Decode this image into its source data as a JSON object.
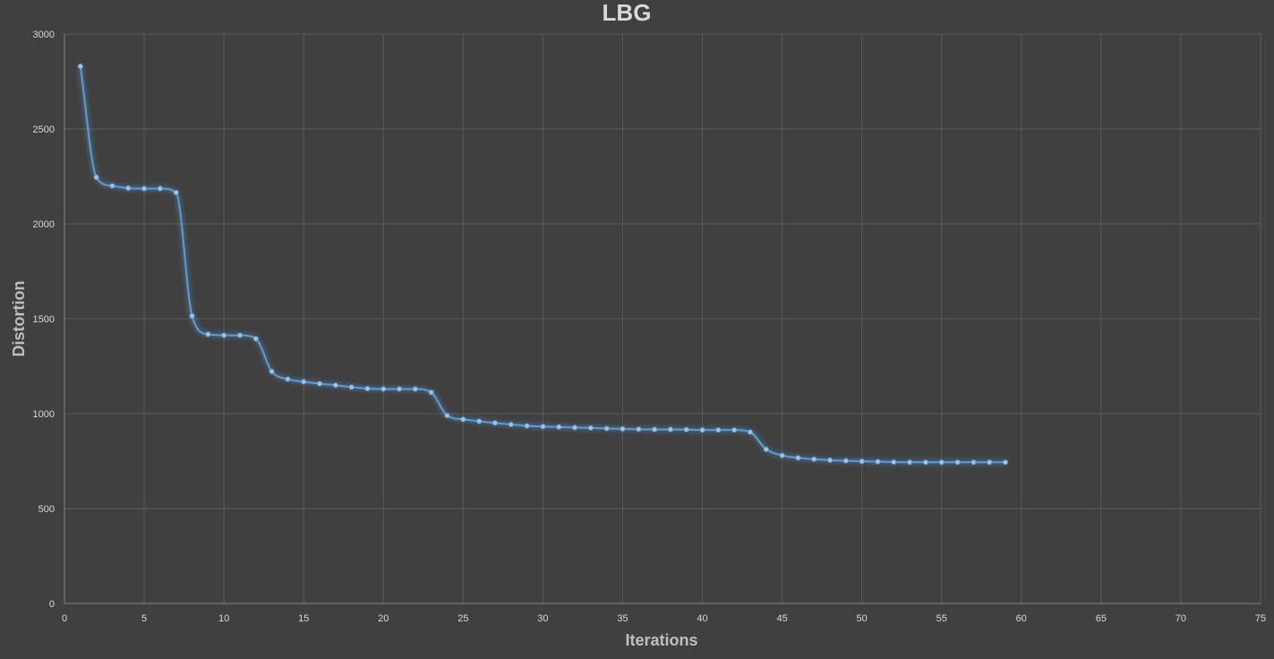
{
  "chart_data": {
    "type": "scatter",
    "title": "LBG",
    "xlabel": "Iterations",
    "ylabel": "Distortion",
    "xlim": [
      0,
      75
    ],
    "ylim": [
      0,
      3000
    ],
    "xticks": [
      0,
      5,
      10,
      15,
      20,
      25,
      30,
      35,
      40,
      45,
      50,
      55,
      60,
      65,
      70,
      75
    ],
    "yticks": [
      0,
      500,
      1000,
      1500,
      2000,
      2500,
      3000
    ],
    "grid": true,
    "line_style": "smooth line with markers",
    "series_color": "#5b9bd5",
    "series": [
      {
        "x": [
          1,
          2,
          3,
          4,
          5,
          6,
          7,
          8,
          9,
          10,
          11,
          12,
          13,
          14,
          15,
          16,
          17,
          18,
          19,
          20,
          21,
          22,
          23,
          24,
          25,
          26,
          27,
          28,
          29,
          30,
          31,
          32,
          33,
          34,
          35,
          36,
          37,
          38,
          39,
          40,
          41,
          42,
          43,
          44,
          45,
          46,
          47,
          48,
          49,
          50,
          51,
          52,
          53,
          54,
          55,
          56,
          57,
          58,
          59
        ],
        "y": [
          2830,
          2245,
          2200,
          2188,
          2186,
          2186,
          2165,
          1515,
          1418,
          1413,
          1413,
          1395,
          1222,
          1182,
          1168,
          1158,
          1150,
          1140,
          1132,
          1130,
          1130,
          1130,
          1112,
          990,
          970,
          960,
          951,
          943,
          936,
          932,
          930,
          927,
          925,
          922,
          920,
          918,
          917,
          917,
          916,
          914,
          914,
          914,
          903,
          812,
          780,
          767,
          760,
          755,
          752,
          749,
          747,
          745,
          744,
          744,
          744,
          744,
          744,
          744,
          744
        ]
      }
    ]
  },
  "colors": {
    "background": "#404040",
    "grid": "#5a5a5a",
    "text": "#d9d9d9",
    "axis_title": "#bfbfbf"
  }
}
